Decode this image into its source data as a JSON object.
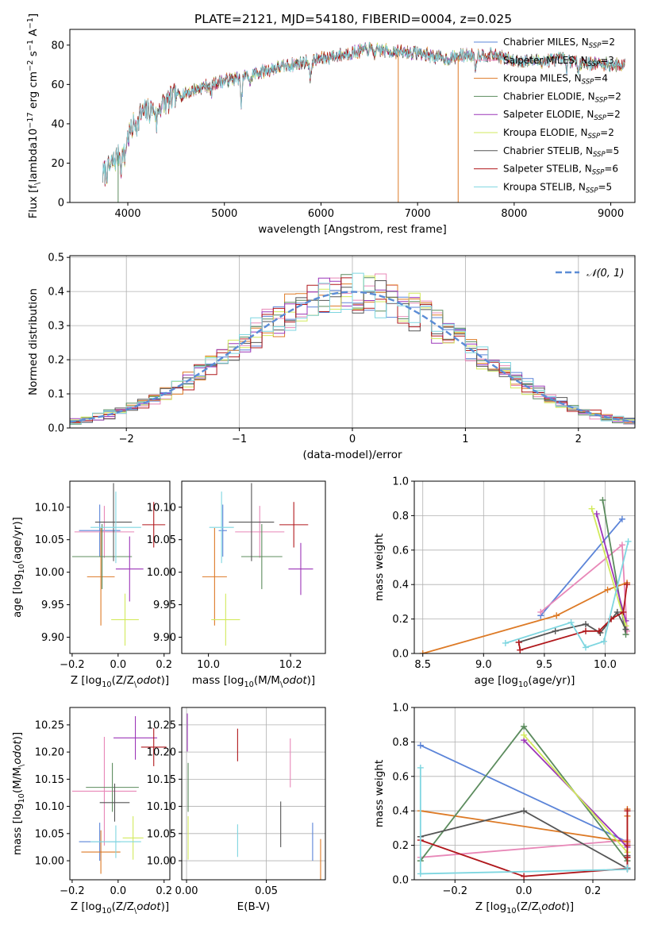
{
  "figure": {
    "title": "PLATE=2121, MJD=54180, FIBERID=0004, z=0.025",
    "colors": {
      "chabrier_miles": "#5b84d8",
      "salpeter_miles": "#e888b8",
      "kroupa_miles": "#dd7a26",
      "chabrier_elodie": "#5c8c5e",
      "salpeter_elodie": "#9c36b8",
      "kroupa_elodie": "#d2ea5c",
      "chabrier_stelib": "#555555",
      "salpeter_stelib": "#b0181c",
      "kroupa_stelib": "#7ed6e0",
      "normal_curve": "#5b8cd6",
      "grid": "#b0b0b0"
    }
  },
  "chart_data": [
    {
      "id": "spectrum",
      "type": "line",
      "xlabel": "wavelength [Angstrom, rest frame]",
      "ylabel": "Flux [f$_\\lambda$10$^{-17}$ erg cm$^{-2}$ s$^{-1}$ A$^{-1}$]",
      "xlim": [
        3400,
        9250
      ],
      "ylim": [
        0,
        88
      ],
      "xticks": [
        4000,
        5000,
        6000,
        7000,
        8000,
        9000
      ],
      "yticks": [
        0,
        20,
        40,
        60,
        80
      ],
      "grid": false,
      "legend_position": "top-right",
      "legend": [
        {
          "label": "Chabrier MILES, N",
          "sub": "SSP",
          "suffix": "=2",
          "color_key": "chabrier_miles"
        },
        {
          "label": "Salpeter MILES, N",
          "sub": "SSP",
          "suffix": "=3",
          "color_key": "salpeter_miles"
        },
        {
          "label": "Kroupa MILES, N",
          "sub": "SSP",
          "suffix": "=4",
          "color_key": "kroupa_miles"
        },
        {
          "label": "Chabrier ELODIE, N",
          "sub": "SSP",
          "suffix": "=2",
          "color_key": "chabrier_elodie"
        },
        {
          "label": "Salpeter ELODIE, N",
          "sub": "SSP",
          "suffix": "=2",
          "color_key": "salpeter_elodie"
        },
        {
          "label": "Kroupa ELODIE, N",
          "sub": "SSP",
          "suffix": "=2",
          "color_key": "kroupa_elodie"
        },
        {
          "label": "Chabrier STELIB, N",
          "sub": "SSP",
          "suffix": "=5",
          "color_key": "chabrier_stelib"
        },
        {
          "label": "Salpeter STELIB, N",
          "sub": "SSP",
          "suffix": "=6",
          "color_key": "salpeter_stelib"
        },
        {
          "label": "Kroupa STELIB, N",
          "sub": "SSP",
          "suffix": "=5",
          "color_key": "kroupa_stelib"
        }
      ],
      "continuum": {
        "wavelength": [
          3740,
          3800,
          3900,
          4000,
          4100,
          4300,
          4500,
          4800,
          5000,
          5200,
          5500,
          5800,
          6000,
          6300,
          6500,
          6700,
          7000,
          7300,
          7500,
          7800,
          8000,
          8300,
          8500,
          8700,
          9000,
          9150
        ],
        "flux": [
          14,
          17,
          24,
          33,
          44,
          48,
          54,
          59,
          62,
          64,
          68,
          71,
          73,
          76,
          78,
          77,
          76,
          73,
          75,
          75,
          72,
          72,
          73,
          71,
          70,
          70
        ]
      },
      "dropouts": [
        {
          "wavelength": 3900,
          "flux": 0,
          "color_key": "chabrier_elodie"
        },
        {
          "wavelength": 6800,
          "flux": 0,
          "color_key": "kroupa_miles"
        },
        {
          "wavelength": 7420,
          "flux": 0,
          "color_key": "kroupa_miles"
        }
      ]
    },
    {
      "id": "residuals",
      "type": "histogram",
      "xlabel": "(data-model)/error",
      "ylabel": "Normed distribution",
      "xlim": [
        -2.5,
        2.5
      ],
      "ylim": [
        0,
        0.505
      ],
      "xticks": [
        -2,
        -1,
        0,
        1,
        2
      ],
      "yticks": [
        0.0,
        0.1,
        0.2,
        0.3,
        0.4,
        0.5
      ],
      "grid": true,
      "bin_edges_range": [
        -2.5,
        2.5
      ],
      "bin_width": 0.1,
      "legend_position": "top-right",
      "legend": [
        {
          "label": "$\\mathcal{N}(0,1)$",
          "color_key": "normal_curve",
          "style": "dashed"
        }
      ]
    },
    {
      "id": "z-age",
      "type": "errorbar",
      "xlabel": "Z [log$_{10}$(Z/Z$_\\odot$)]",
      "ylabel": "age  [log$_{10}$(age/yr)]",
      "xlim": [
        -0.21,
        0.225
      ],
      "ylim": [
        9.875,
        10.14
      ],
      "xticks": [
        -0.2,
        0.0,
        0.2
      ],
      "yticks": [
        9.9,
        9.95,
        10.0,
        10.05,
        10.1
      ],
      "grid": false,
      "points": [
        {
          "key": "chabrier_miles",
          "x": -0.08,
          "xerr": 0.09,
          "y": 10.064,
          "yerr": 0.04
        },
        {
          "key": "salpeter_miles",
          "x": -0.06,
          "xerr": 0.13,
          "y": 10.062,
          "yerr": 0.04
        },
        {
          "key": "kroupa_miles",
          "x": -0.075,
          "xerr": 0.06,
          "y": 9.993,
          "yerr": 0.075
        },
        {
          "key": "chabrier_elodie",
          "x": -0.07,
          "xerr": 0.13,
          "y": 10.024,
          "yerr": 0.05
        },
        {
          "key": "salpeter_elodie",
          "x": 0.05,
          "xerr": 0.06,
          "y": 10.005,
          "yerr": 0.05
        },
        {
          "key": "kroupa_elodie",
          "x": 0.03,
          "xerr": 0.06,
          "y": 9.927,
          "yerr": 0.04
        },
        {
          "key": "chabrier_stelib",
          "x": -0.02,
          "xerr": 0.08,
          "y": 10.077,
          "yerr": 0.06
        },
        {
          "key": "salpeter_stelib",
          "x": 0.155,
          "xerr": 0.05,
          "y": 10.073,
          "yerr": 0.035
        },
        {
          "key": "kroupa_stelib",
          "x": -0.01,
          "xerr": 0.11,
          "y": 10.069,
          "yerr": 0.055
        }
      ]
    },
    {
      "id": "mass-age",
      "type": "errorbar",
      "xlabel": "mass [log$_{10}$(M/M$_\\odot$)]",
      "ylabel": "",
      "xlim": [
        9.935,
        10.285
      ],
      "ylim": [
        9.875,
        10.14
      ],
      "xticks": [
        10.0,
        10.2
      ],
      "yticks": [
        9.9,
        9.95,
        10.0,
        10.05,
        10.1
      ],
      "grid": false,
      "points": [
        {
          "key": "chabrier_miles",
          "x": 10.035,
          "xerr": 0.01,
          "y": 10.064,
          "yerr": 0.04
        },
        {
          "key": "salpeter_miles",
          "x": 10.125,
          "xerr": 0.06,
          "y": 10.062,
          "yerr": 0.04
        },
        {
          "key": "kroupa_miles",
          "x": 10.015,
          "xerr": 0.03,
          "y": 9.993,
          "yerr": 0.075
        },
        {
          "key": "chabrier_elodie",
          "x": 10.13,
          "xerr": 0.05,
          "y": 10.024,
          "yerr": 0.05
        },
        {
          "key": "salpeter_elodie",
          "x": 10.225,
          "xerr": 0.03,
          "y": 10.005,
          "yerr": 0.04
        },
        {
          "key": "kroupa_elodie",
          "x": 10.042,
          "xerr": 0.035,
          "y": 9.927,
          "yerr": 0.04
        },
        {
          "key": "chabrier_stelib",
          "x": 10.105,
          "xerr": 0.055,
          "y": 10.077,
          "yerr": 0.06
        },
        {
          "key": "salpeter_stelib",
          "x": 10.208,
          "xerr": 0.035,
          "y": 10.073,
          "yerr": 0.035
        },
        {
          "key": "kroupa_stelib",
          "x": 10.032,
          "xerr": 0.03,
          "y": 10.069,
          "yerr": 0.055
        }
      ]
    },
    {
      "id": "weights-age",
      "type": "line",
      "xlabel": "age  [log$_{10}$(age/yr)]",
      "ylabel": "mass weight",
      "xlim": [
        8.43,
        10.245
      ],
      "ylim": [
        0,
        1.0
      ],
      "xticks": [
        8.5,
        9.0,
        9.5,
        10.0
      ],
      "yticks": [
        0.0,
        0.2,
        0.4,
        0.6,
        0.8,
        1.0
      ],
      "grid": true,
      "series": [
        {
          "key": "chabrier_miles",
          "x": [
            9.47,
            10.14
          ],
          "y": [
            0.22,
            0.78
          ]
        },
        {
          "key": "salpeter_miles",
          "x": [
            9.47,
            10.14,
            10.18
          ],
          "y": [
            0.24,
            0.63,
            0.13
          ]
        },
        {
          "key": "kroupa_miles",
          "x": [
            8.5,
            9.6,
            10.02,
            10.18
          ],
          "y": [
            0.0,
            0.22,
            0.37,
            0.41
          ]
        },
        {
          "key": "chabrier_elodie",
          "x": [
            9.98,
            10.17
          ],
          "y": [
            0.89,
            0.11
          ]
        },
        {
          "key": "salpeter_elodie",
          "x": [
            9.93,
            10.17
          ],
          "y": [
            0.81,
            0.19
          ]
        },
        {
          "key": "kroupa_elodie",
          "x": [
            9.89,
            10.17
          ],
          "y": [
            0.84,
            0.16
          ]
        },
        {
          "key": "chabrier_stelib",
          "x": [
            9.29,
            9.59,
            9.84,
            9.96,
            10.1,
            10.17
          ],
          "y": [
            0.065,
            0.13,
            0.17,
            0.12,
            0.24,
            0.14
          ]
        },
        {
          "key": "salpeter_stelib",
          "x": [
            9.29,
            9.3,
            9.84,
            9.95,
            10.05,
            10.15,
            10.18
          ],
          "y": [
            0.065,
            0.02,
            0.13,
            0.13,
            0.2,
            0.24,
            0.4
          ]
        },
        {
          "key": "kroupa_stelib",
          "x": [
            9.18,
            9.72,
            9.84,
            9.99,
            10.19
          ],
          "y": [
            0.06,
            0.18,
            0.035,
            0.07,
            0.65
          ]
        }
      ]
    },
    {
      "id": "z-mass",
      "type": "errorbar",
      "xlabel": "Z [log$_{10}$(Z/Z$_\\odot$)]",
      "ylabel": "mass [log$_{10}$(M/M$_\\odot$)]",
      "xlim": [
        -0.21,
        0.225
      ],
      "ylim": [
        9.965,
        10.282
      ],
      "xticks": [
        -0.2,
        0.0,
        0.2
      ],
      "yticks": [
        10.0,
        10.05,
        10.1,
        10.15,
        10.2,
        10.25
      ],
      "grid": false,
      "points": [
        {
          "key": "chabrier_miles",
          "x": -0.08,
          "xerr": 0.09,
          "y": 10.035,
          "yerr": 0.035
        },
        {
          "key": "salpeter_miles",
          "x": -0.06,
          "xerr": 0.14,
          "y": 10.128,
          "yerr": 0.1
        },
        {
          "key": "kroupa_miles",
          "x": -0.075,
          "xerr": 0.085,
          "y": 10.016,
          "yerr": 0.04
        },
        {
          "key": "chabrier_elodie",
          "x": -0.025,
          "xerr": 0.115,
          "y": 10.135,
          "yerr": 0.045
        },
        {
          "key": "salpeter_elodie",
          "x": 0.075,
          "xerr": 0.095,
          "y": 10.226,
          "yerr": 0.04
        },
        {
          "key": "kroupa_elodie",
          "x": 0.065,
          "xerr": 0.045,
          "y": 10.042,
          "yerr": 0.04
        },
        {
          "key": "chabrier_stelib",
          "x": -0.015,
          "xerr": 0.065,
          "y": 10.107,
          "yerr": 0.035
        },
        {
          "key": "salpeter_stelib",
          "x": 0.155,
          "xerr": 0.055,
          "y": 10.209,
          "yerr": 0.035
        },
        {
          "key": "kroupa_stelib",
          "x": -0.01,
          "xerr": 0.11,
          "y": 10.035,
          "yerr": 0.03
        }
      ]
    },
    {
      "id": "ebv-mass",
      "type": "errorbar",
      "xlabel": "E(B-V)",
      "ylabel": "",
      "xlim": [
        -0.003,
        0.087
      ],
      "ylim": [
        9.965,
        10.282
      ],
      "xticks": [
        0.0,
        0.05
      ],
      "yticks": [
        10.0,
        10.05,
        10.1,
        10.15,
        10.2,
        10.25
      ],
      "grid": true,
      "points": [
        {
          "key": "chabrier_miles",
          "x": 0.079,
          "xerr": 0.0,
          "y": 10.035,
          "yerr": 0.035
        },
        {
          "key": "salpeter_miles",
          "x": 0.065,
          "xerr": 0.0,
          "y": 10.18,
          "yerr": 0.045
        },
        {
          "key": "kroupa_miles",
          "x": 0.084,
          "xerr": 0.0,
          "y": 10.0,
          "yerr": 0.04
        },
        {
          "key": "chabrier_elodie",
          "x": 0.001,
          "xerr": 0.0,
          "y": 10.135,
          "yerr": 0.045
        },
        {
          "key": "salpeter_elodie",
          "x": 0.0005,
          "xerr": 0.0,
          "y": 10.236,
          "yerr": 0.035
        },
        {
          "key": "kroupa_elodie",
          "x": 0.001,
          "xerr": 0.0,
          "y": 10.042,
          "yerr": 0.04
        },
        {
          "key": "chabrier_stelib",
          "x": 0.059,
          "xerr": 0.0,
          "y": 10.067,
          "yerr": 0.042
        },
        {
          "key": "salpeter_stelib",
          "x": 0.032,
          "xerr": 0.0,
          "y": 10.213,
          "yerr": 0.03
        },
        {
          "key": "kroupa_stelib",
          "x": 0.032,
          "xerr": 0.0,
          "y": 10.037,
          "yerr": 0.03
        }
      ]
    },
    {
      "id": "weights-z",
      "type": "line",
      "xlabel": "Z [log$_{10}$(Z/Z$_\\odot$)]",
      "ylabel": "mass weight",
      "xlim": [
        -0.318,
        0.322
      ],
      "ylim": [
        0,
        1.0
      ],
      "xticks": [
        -0.2,
        0.0,
        0.2
      ],
      "yticks": [
        0.0,
        0.2,
        0.4,
        0.6,
        0.8,
        1.0
      ],
      "grid": true,
      "series": [
        {
          "key": "chabrier_miles",
          "x": [
            -0.3,
            0.3
          ],
          "y": [
            0.78,
            0.22
          ]
        },
        {
          "key": "salpeter_miles",
          "x": [
            -0.3,
            0.3,
            0.3
          ],
          "y": [
            0.13,
            0.23,
            0.21
          ]
        },
        {
          "key": "kroupa_miles",
          "x": [
            -0.3,
            0.3,
            0.3,
            0.3
          ],
          "y": [
            0.4,
            0.22,
            0.37,
            0.41
          ]
        },
        {
          "key": "chabrier_elodie",
          "x": [
            -0.3,
            0.0,
            0.3
          ],
          "y": [
            0.11,
            0.89,
            0.11
          ]
        },
        {
          "key": "salpeter_elodie",
          "x": [
            0.0,
            0.3
          ],
          "y": [
            0.81,
            0.19
          ]
        },
        {
          "key": "kroupa_elodie",
          "x": [
            0.0,
            0.3
          ],
          "y": [
            0.84,
            0.16
          ]
        },
        {
          "key": "chabrier_stelib",
          "x": [
            -0.3,
            0.0,
            0.3,
            0.3,
            0.3
          ],
          "y": [
            0.25,
            0.4,
            0.065,
            0.14,
            0.13
          ]
        },
        {
          "key": "salpeter_stelib",
          "x": [
            -0.3,
            0.0,
            0.3,
            0.3,
            0.3,
            0.3
          ],
          "y": [
            0.23,
            0.02,
            0.065,
            0.13,
            0.2,
            0.4
          ]
        },
        {
          "key": "kroupa_stelib",
          "x": [
            -0.3,
            -0.3,
            0.3,
            0.3
          ],
          "y": [
            0.65,
            0.035,
            0.06,
            0.07
          ]
        }
      ]
    }
  ]
}
